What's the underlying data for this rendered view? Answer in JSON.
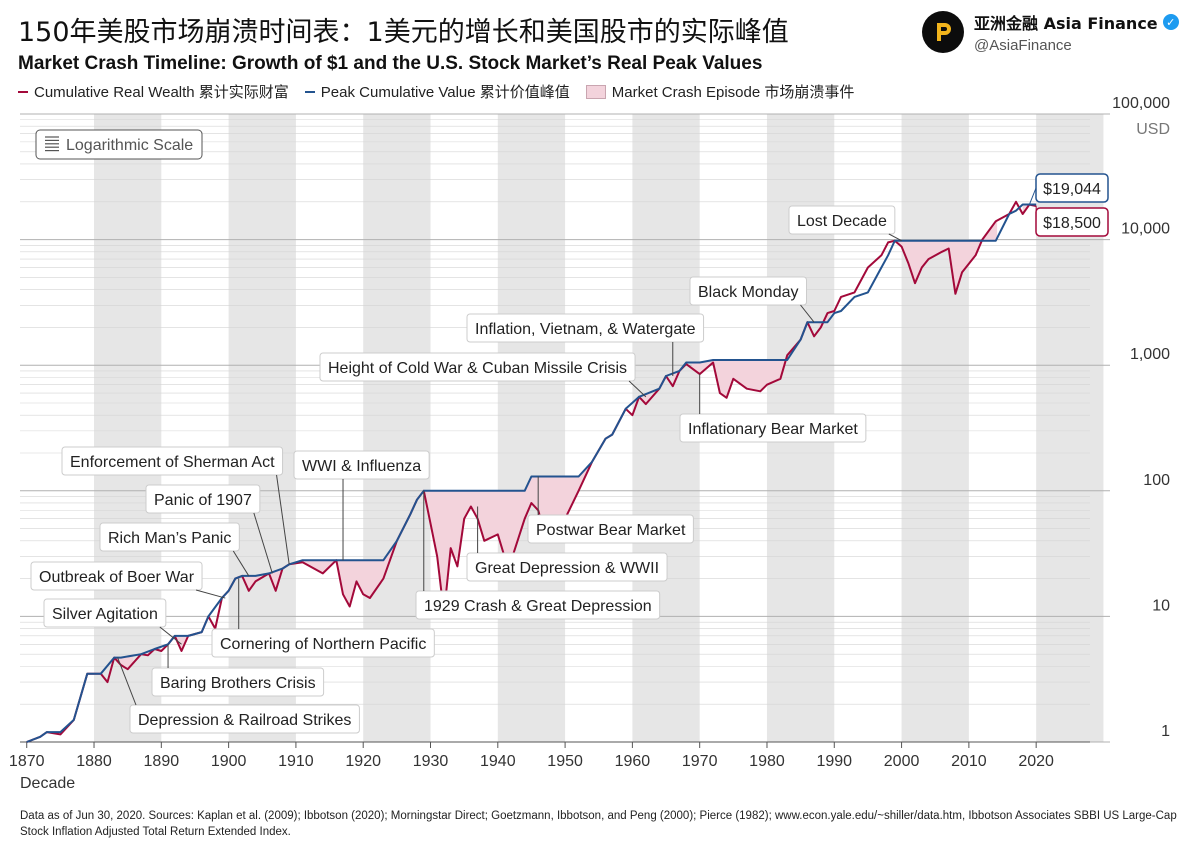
{
  "header": {
    "title_cn": "150年美股市场崩溃时间表：1美元的增长和美国股市的实际峰值",
    "title_en": "Market Crash Timeline: Growth of $1 and the U.S. Stock Market’s Real Peak Values"
  },
  "brand": {
    "name": "亚洲金融 Asia Finance",
    "handle": "@AsiaFinance",
    "logo_icon": "stylized-p-logo-icon",
    "verified_icon": "verified-check-icon"
  },
  "legend": {
    "wealth_label": "Cumulative Real Wealth 累计实际财富",
    "peak_label": "Peak Cumulative Value 累计价值峰值",
    "crash_label": "Market Crash Episode 市场崩溃事件"
  },
  "footer": {
    "source": "Data as of Jun 30, 2020. Sources: Kaplan et al. (2009); Ibbotson (2020); Morningstar Direct; Goetzmann, Ibbotson, and Peng (2000); Pierce (1982); www.econ.yale.edu/~shiller/data.htm, Ibbotson Associates SBBI US Large-Cap Stock Inflation Adjusted Total Return Extended Index."
  },
  "chart_data": {
    "type": "line",
    "scale_badge": "Logarithmic Scale",
    "xlabel": "Decade",
    "ylabel": "USD",
    "y_scale": "log",
    "ylim": [
      1,
      100000
    ],
    "xlim": [
      1869,
      2028
    ],
    "x_ticks": [
      "1870",
      "1880",
      "1890",
      "1900",
      "1910",
      "1920",
      "1930",
      "1940",
      "1950",
      "1960",
      "1970",
      "1980",
      "1990",
      "2000",
      "2010",
      "2020"
    ],
    "y_ticks": [
      {
        "value": 1,
        "label": "1"
      },
      {
        "value": 10,
        "label": "10"
      },
      {
        "value": 100,
        "label": "100"
      },
      {
        "value": 1000,
        "label": "1,000"
      },
      {
        "value": 10000,
        "label": "10,000"
      },
      {
        "value": 100000,
        "label": "100,000"
      }
    ],
    "colors": {
      "wealth": "#a3093a",
      "peak": "#23538f",
      "crash_fill": "#f3d3dc",
      "band": "#e6e6e6",
      "grid": "#b0b0b0",
      "callout_text": "#222222"
    },
    "series": [
      {
        "name": "Cumulative Real Wealth 累计实际财富",
        "role": "wealth",
        "x": [
          1870,
          1872,
          1873,
          1875,
          1877,
          1879,
          1881,
          1882,
          1883,
          1884,
          1885,
          1887,
          1888,
          1889,
          1890,
          1891,
          1892,
          1893,
          1894,
          1896,
          1897,
          1898,
          1899,
          1900,
          1901,
          1902,
          1903,
          1904,
          1906,
          1907,
          1908,
          1909,
          1911,
          1914,
          1916,
          1917,
          1918,
          1919,
          1920,
          1921,
          1923,
          1925,
          1927,
          1928,
          1929,
          1930,
          1931,
          1932,
          1933,
          1934,
          1935,
          1936,
          1937,
          1938,
          1940,
          1941,
          1942,
          1944,
          1945,
          1946,
          1947,
          1948,
          1949,
          1950,
          1952,
          1954,
          1956,
          1957,
          1959,
          1960,
          1961,
          1962,
          1964,
          1965,
          1966,
          1967,
          1968,
          1970,
          1972,
          1973,
          1974,
          1975,
          1977,
          1979,
          1980,
          1982,
          1983,
          1985,
          1986,
          1987,
          1988,
          1989,
          1990,
          1991,
          1993,
          1995,
          1997,
          1998,
          1999,
          2000,
          2001,
          2002,
          2003,
          2004,
          2006,
          2007,
          2008,
          2009,
          2011,
          2012,
          2014,
          2016,
          2017,
          2018,
          2019,
          2020
        ],
        "values": [
          1.0,
          1.1,
          1.2,
          1.15,
          1.5,
          3.5,
          3.5,
          3.0,
          4.7,
          4.1,
          3.8,
          5.0,
          4.9,
          5.5,
          5.3,
          6.0,
          7.0,
          5.3,
          7.0,
          7.5,
          10.0,
          8.0,
          14.0,
          16.0,
          20.0,
          21.0,
          16.0,
          19.0,
          22.0,
          16.0,
          24.0,
          26.0,
          27.0,
          22.0,
          28.0,
          15.0,
          12.0,
          19.0,
          15.0,
          14.0,
          20.0,
          40.0,
          65.0,
          85.0,
          100.0,
          55.0,
          30.0,
          10.5,
          35.0,
          25.0,
          60.0,
          75.0,
          60.0,
          40.0,
          45.0,
          30.0,
          28.0,
          60.0,
          80.0,
          70.0,
          45.0,
          40.0,
          50.0,
          60.0,
          100.0,
          170.0,
          260.0,
          280.0,
          450.0,
          400.0,
          560.0,
          490.0,
          650.0,
          820.0,
          680.0,
          900.0,
          1020.0,
          850.0,
          1050.0,
          600.0,
          550.0,
          780.0,
          650.0,
          620.0,
          700.0,
          780.0,
          1200.0,
          1600.0,
          2200.0,
          1700.0,
          2000.0,
          2600.0,
          2700.0,
          3500.0,
          3800.0,
          6000.0,
          7500.0,
          9500.0,
          9800.0,
          8800.0,
          6500.0,
          4500.0,
          6000.0,
          7000.0,
          8000.0,
          8500.0,
          3700.0,
          5500.0,
          7500.0,
          10000.0,
          14000.0,
          16000.0,
          20000.0,
          16000.0,
          19000.0,
          18500.0
        ]
      },
      {
        "name": "Peak Cumulative Value 累计价值峰值",
        "role": "peak",
        "x": [
          1870,
          1872,
          1873,
          1875,
          1877,
          1879,
          1881,
          1883,
          1884,
          1887,
          1889,
          1891,
          1892,
          1893,
          1894,
          1896,
          1897,
          1899,
          1900,
          1901,
          1902,
          1904,
          1906,
          1908,
          1909,
          1911,
          1916,
          1921,
          1923,
          1925,
          1927,
          1928,
          1929,
          1942,
          1943,
          1944,
          1945,
          1949,
          1950,
          1952,
          1954,
          1956,
          1957,
          1959,
          1961,
          1964,
          1965,
          1967,
          1968,
          1970,
          1972,
          1983,
          1985,
          1986,
          1989,
          1990,
          1991,
          1993,
          1995,
          1997,
          1998,
          1999,
          2014,
          2016,
          2017,
          2018,
          2019,
          2020
        ],
        "values": [
          1.0,
          1.1,
          1.2,
          1.2,
          1.5,
          3.5,
          3.5,
          4.7,
          4.7,
          5.0,
          5.5,
          6.0,
          7.0,
          7.0,
          7.0,
          7.5,
          10.0,
          14.0,
          16.0,
          20.0,
          21.0,
          21.0,
          22.0,
          24.0,
          26.0,
          28.0,
          28.0,
          28.0,
          28.0,
          40.0,
          65.0,
          85.0,
          100.0,
          100.0,
          100.0,
          100.0,
          130.0,
          130.0,
          130.0,
          130.0,
          170.0,
          260.0,
          280.0,
          450.0,
          560.0,
          650.0,
          820.0,
          900.0,
          1050.0,
          1050.0,
          1100.0,
          1100.0,
          1600.0,
          2200.0,
          2200.0,
          2600.0,
          2700.0,
          3500.0,
          3800.0,
          6000.0,
          7500.0,
          9800.0,
          9800.0,
          16000.0,
          17000.0,
          19044.0,
          19044.0,
          19044.0
        ]
      }
    ],
    "crash_episodes": [
      {
        "start": 1883.0,
        "end": 1885.8
      },
      {
        "start": 1887.0,
        "end": 1889.2
      },
      {
        "start": 1891.0,
        "end": 1891.8
      },
      {
        "start": 1892.3,
        "end": 1894.8
      },
      {
        "start": 1902.1,
        "end": 1904.8
      },
      {
        "start": 1906.1,
        "end": 1908.6
      },
      {
        "start": 1909.3,
        "end": 1925.4
      },
      {
        "start": 1929.0,
        "end": 1954.8
      },
      {
        "start": 1957.0,
        "end": 1958.2
      },
      {
        "start": 1961.5,
        "end": 1962.6
      },
      {
        "start": 1966.0,
        "end": 1967.6
      },
      {
        "start": 1968.8,
        "end": 1983.4
      },
      {
        "start": 1987.7,
        "end": 1989.2
      },
      {
        "start": 1999.5,
        "end": 2014.2
      },
      {
        "start": 2018.0,
        "end": 2020.0
      }
    ],
    "annotations": [
      {
        "text": "Depression & Railroad Strikes",
        "x": 1883.5
      },
      {
        "text": "Baring Brothers Crisis",
        "x": 1891.0
      },
      {
        "text": "Silver Agitation",
        "x": 1893.0
      },
      {
        "text": "Outbreak of Boer War",
        "x": 1899.5
      },
      {
        "text": "Cornering of Northern Pacific",
        "x": 1901.5
      },
      {
        "text": "Rich Man’s Panic",
        "x": 1903.0
      },
      {
        "text": "Panic of 1907",
        "x": 1906.5
      },
      {
        "text": "Enforcement of Sherman Act",
        "x": 1909.0
      },
      {
        "text": "WWI & Influenza",
        "x": 1917.0
      },
      {
        "text": "1929 Crash & Great Depression",
        "x": 1929.0
      },
      {
        "text": "Great Depression & WWII",
        "x": 1937.0
      },
      {
        "text": "Postwar Bear Market",
        "x": 1946.0
      },
      {
        "text": "Height of Cold War & Cuban Missile Crisis",
        "x": 1962.0
      },
      {
        "text": "Inflation, Vietnam, & Watergate",
        "x": 1966.0
      },
      {
        "text": "Inflationary Bear Market",
        "x": 1970.0
      },
      {
        "text": "Black Monday",
        "x": 1987.0
      },
      {
        "text": "Lost Decade",
        "x": 2000.0
      }
    ],
    "end_labels": [
      {
        "text": "$19,044",
        "value": 19044,
        "series": "peak"
      },
      {
        "text": "$18,500",
        "value": 18500,
        "series": "wealth"
      }
    ]
  }
}
